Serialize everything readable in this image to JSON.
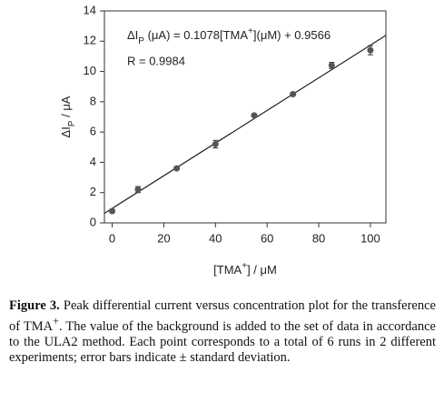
{
  "chart_data": {
    "type": "scatter",
    "x_label_parts": [
      "[TMA",
      "+",
      "] / μM"
    ],
    "y_label_parts": [
      "ΔI",
      "P",
      " / μA"
    ],
    "equation_parts": [
      "ΔI",
      "P",
      " (μA) = ",
      "[TMA",
      "+",
      "](μM) + "
    ],
    "fit": {
      "slope": 0.1078,
      "intercept": 0.9566
    },
    "r_text": "R = 0.9984",
    "series": [
      {
        "color": "#555555",
        "x": [
          0,
          10,
          25,
          40,
          55,
          70,
          85,
          100
        ],
        "values": [
          0.78,
          2.2,
          3.6,
          5.2,
          7.1,
          8.5,
          10.4,
          11.4
        ],
        "errors": [
          0.12,
          0.2,
          0.1,
          0.25,
          0.1,
          0.1,
          0.2,
          0.3
        ]
      }
    ],
    "xlim": [
      -3,
      106
    ],
    "xticks": [
      0,
      20,
      40,
      60,
      80,
      100
    ],
    "ylim": [
      0,
      14
    ],
    "yticks": [
      0,
      2,
      4,
      6,
      8,
      10,
      12,
      14
    ]
  },
  "caption": {
    "label": "Figure 3.",
    "parts": [
      " Peak differential current versus concentration plot for the transference of TMA",
      "+",
      ". The value of the background is added to the set of data in accordance to the ULA2 method. Each point corresponds to a total of 6 runs in 2 different experiments; error bars indicate ± standard deviation."
    ]
  }
}
